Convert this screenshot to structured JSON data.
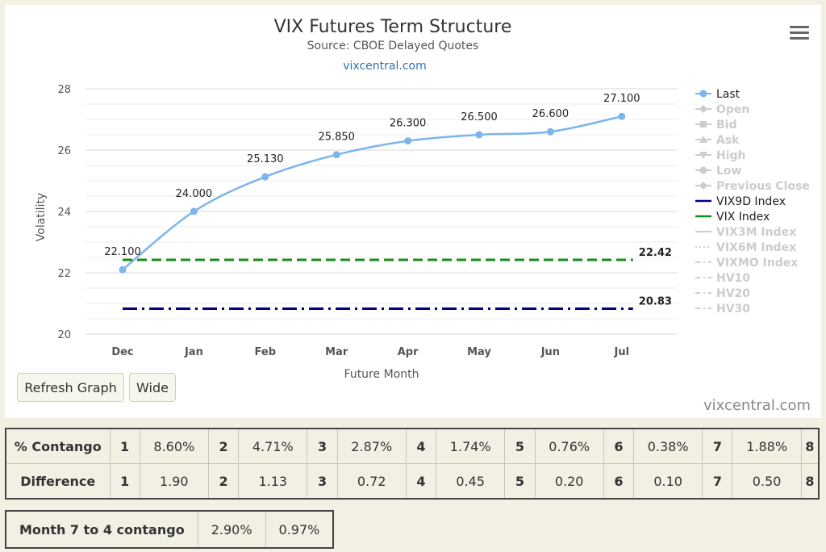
{
  "chart_data": {
    "type": "line",
    "title": "VIX Futures Term Structure",
    "subtitle": "Source: CBOE Delayed Quotes",
    "subtitle_link": "vixcentral.com",
    "xlabel": "Future Month",
    "ylabel": "Volatility",
    "ylim": [
      20,
      28
    ],
    "yticks": [
      20,
      22,
      24,
      26,
      28
    ],
    "categories": [
      "Dec",
      "Jan",
      "Feb",
      "Mar",
      "Apr",
      "May",
      "Jun",
      "Jul"
    ],
    "series": [
      {
        "name": "Last",
        "values": [
          22.1,
          24.0,
          25.13,
          25.85,
          26.3,
          26.5,
          26.6,
          27.1
        ],
        "labels": [
          "22.100",
          "24.000",
          "25.130",
          "25.850",
          "26.300",
          "26.500",
          "26.600",
          "27.100"
        ],
        "color": "#7cb5ec"
      },
      {
        "name": "VIX9D Index",
        "values": [
          20.83,
          20.83,
          20.83,
          20.83,
          20.83,
          20.83,
          20.83,
          20.83
        ],
        "end_label": "20.83",
        "color": "#000080",
        "dash": "dash-dot"
      },
      {
        "name": "VIX Index",
        "values": [
          22.42,
          22.42,
          22.42,
          22.42,
          22.42,
          22.42,
          22.42,
          22.42
        ],
        "end_label": "22.42",
        "color": "#1a8c1a",
        "dash": "dash"
      }
    ],
    "legend": {
      "placement": "right",
      "items": [
        {
          "name": "Last",
          "active": true,
          "symbol": "circle",
          "color": "#7cb5ec"
        },
        {
          "name": "Open",
          "active": false,
          "symbol": "diamond",
          "color": "#cccccc"
        },
        {
          "name": "Bid",
          "active": false,
          "symbol": "square",
          "color": "#cccccc"
        },
        {
          "name": "Ask",
          "active": false,
          "symbol": "triangle",
          "color": "#cccccc"
        },
        {
          "name": "High",
          "active": false,
          "symbol": "triangle-down",
          "color": "#cccccc"
        },
        {
          "name": "Low",
          "active": false,
          "symbol": "circle",
          "color": "#cccccc"
        },
        {
          "name": "Previous Close",
          "active": false,
          "symbol": "diamond",
          "color": "#cccccc"
        },
        {
          "name": "VIX9D Index",
          "active": true,
          "symbol": "line",
          "color": "#000080"
        },
        {
          "name": "VIX Index",
          "active": true,
          "symbol": "line",
          "color": "#1a8c1a"
        },
        {
          "name": "VIX3M Index",
          "active": false,
          "symbol": "line",
          "color": "#cccccc"
        },
        {
          "name": "VIX6M Index",
          "active": false,
          "symbol": "dotted",
          "color": "#cccccc"
        },
        {
          "name": "VIXMO Index",
          "active": false,
          "symbol": "dash-dot",
          "color": "#cccccc"
        },
        {
          "name": "HV10",
          "active": false,
          "symbol": "dash-dot",
          "color": "#cccccc"
        },
        {
          "name": "HV20",
          "active": false,
          "symbol": "dash-dot",
          "color": "#cccccc"
        },
        {
          "name": "HV30",
          "active": false,
          "symbol": "dash-dot",
          "color": "#cccccc"
        }
      ]
    },
    "grid": true
  },
  "buttons": {
    "refresh": "Refresh Graph",
    "wide": "Wide"
  },
  "credit": "vixcentral.com",
  "contango_table": {
    "rows": [
      {
        "label": "% Contango",
        "cells": [
          {
            "idx": "1",
            "val": "8.60%"
          },
          {
            "idx": "2",
            "val": "4.71%"
          },
          {
            "idx": "3",
            "val": "2.87%"
          },
          {
            "idx": "4",
            "val": "1.74%"
          },
          {
            "idx": "5",
            "val": "0.76%"
          },
          {
            "idx": "6",
            "val": "0.38%"
          },
          {
            "idx": "7",
            "val": "1.88%"
          },
          {
            "idx": "8",
            "val": ""
          }
        ]
      },
      {
        "label": "Difference",
        "cells": [
          {
            "idx": "1",
            "val": "1.90"
          },
          {
            "idx": "2",
            "val": "1.13"
          },
          {
            "idx": "3",
            "val": "0.72"
          },
          {
            "idx": "4",
            "val": "0.45"
          },
          {
            "idx": "5",
            "val": "0.20"
          },
          {
            "idx": "6",
            "val": "0.10"
          },
          {
            "idx": "7",
            "val": "0.50"
          },
          {
            "idx": "8",
            "val": ""
          }
        ]
      }
    ]
  },
  "month_table": {
    "label": "Month 7 to 4 contango",
    "values": [
      "2.90%",
      "0.97%"
    ]
  }
}
